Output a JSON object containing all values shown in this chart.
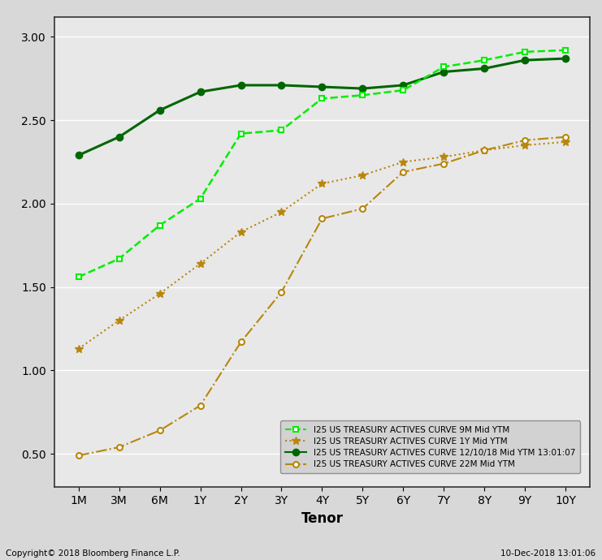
{
  "x_labels": [
    "1M",
    "3M",
    "6M",
    "1Y",
    "2Y",
    "3Y",
    "4Y",
    "5Y",
    "6Y",
    "7Y",
    "8Y",
    "9Y",
    "10Y"
  ],
  "x_positions": [
    0,
    1,
    2,
    3,
    4,
    5,
    6,
    7,
    8,
    9,
    10,
    11,
    12
  ],
  "series": {
    "9M": {
      "label": "I25 US TREASURY ACTIVES CURVE 9M Mid YTM",
      "color": "#00ee00",
      "style": "dashed",
      "marker": "s",
      "markersize": 5,
      "markerfacecolor": "white",
      "markeredgewidth": 1.5,
      "linewidth": 1.8,
      "values": [
        1.56,
        1.67,
        1.87,
        2.03,
        2.42,
        2.44,
        2.63,
        2.65,
        2.68,
        2.82,
        2.86,
        2.91,
        2.92
      ]
    },
    "1Y": {
      "label": "I25 US TREASURY ACTIVES CURVE 1Y Mid YTM",
      "color": "#b8860b",
      "style": "dotted",
      "marker": "*",
      "markersize": 7,
      "markerfacecolor": "#b8860b",
      "markeredgewidth": 1.0,
      "linewidth": 1.5,
      "values": [
        1.13,
        1.3,
        1.46,
        1.64,
        1.83,
        1.95,
        2.12,
        2.17,
        2.25,
        2.28,
        2.32,
        2.35,
        2.37
      ]
    },
    "12/10/18": {
      "label": "I25 US TREASURY ACTIVES CURVE 12/10/18 Mid YTM 13:01:07",
      "color": "#006600",
      "style": "solid",
      "marker": "o",
      "markersize": 6,
      "markerfacecolor": "#006600",
      "markeredgewidth": 1.0,
      "linewidth": 2.2,
      "values": [
        2.29,
        2.4,
        2.56,
        2.67,
        2.71,
        2.71,
        2.7,
        2.69,
        2.71,
        2.79,
        2.81,
        2.86,
        2.87
      ]
    },
    "22M": {
      "label": "I25 US TREASURY ACTIVES CURVE 22M Mid YTM",
      "color": "#b8860b",
      "style": "dashdot",
      "marker": "o",
      "markersize": 5,
      "markerfacecolor": "white",
      "markeredgewidth": 1.5,
      "linewidth": 1.5,
      "values": [
        0.49,
        0.54,
        0.64,
        0.79,
        1.17,
        1.47,
        1.91,
        1.97,
        2.19,
        2.24,
        2.32,
        2.38,
        2.4
      ]
    }
  },
  "ylim": [
    0.3,
    3.12
  ],
  "yticks": [
    0.5,
    1.0,
    1.5,
    2.0,
    2.5,
    3.0
  ],
  "xlabel": "Tenor",
  "xlabel_fontsize": 12,
  "xlabel_fontweight": "bold",
  "background_color": "#d8d8d8",
  "plot_bg_color": "#e8e8e8",
  "grid_color": "#ffffff",
  "tick_labelsize": 10,
  "copyright_text": "Copyright© 2018 Bloomberg Finance L.P.",
  "date_text": "10-Dec-2018 13:01:06",
  "legend_fontsize": 7.5
}
